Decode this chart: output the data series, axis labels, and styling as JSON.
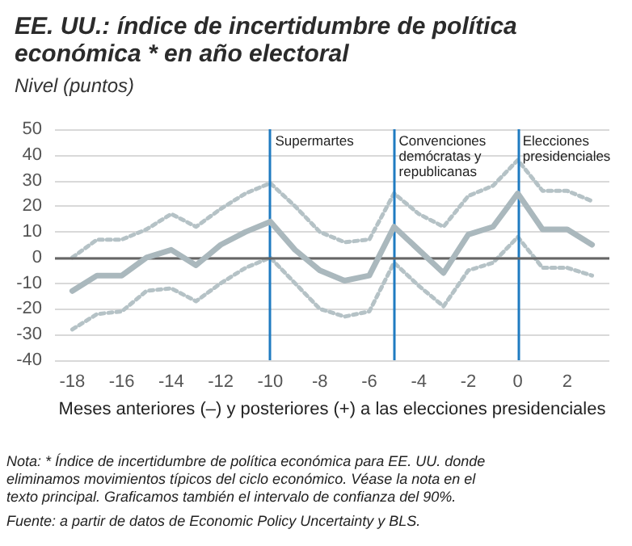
{
  "chart_data": {
    "type": "line",
    "title": "EE. UU.: índice de incertidumbre de política económica * en año electoral",
    "subtitle": "Nivel (puntos)",
    "xlabel": "Meses anteriores (–) y posteriores (+) a las elecciones presidenciales",
    "annotations": [
      "Nota: * Índice de incertidumbre de política económica para EE. UU. donde eliminamos movimientos típicos del ciclo económico. Véase la nota en el texto principal. Graficamos también el intervalo de confianza del 90%.",
      "Fuente: a partir de datos de Economic Policy Uncertainty y BLS."
    ],
    "x": [
      -18,
      -17,
      -16,
      -15,
      -14,
      -13,
      -12,
      -11,
      -10,
      -9,
      -8,
      -7,
      -6,
      -5,
      -4,
      -3,
      -2,
      -1,
      0,
      1,
      2,
      3
    ],
    "series": [
      {
        "color": "#aab8bd",
        "line_style": "solid",
        "values": [
          -13,
          -7,
          -7,
          0,
          3,
          -3,
          5,
          10,
          14,
          3,
          -5,
          -9,
          -7,
          12,
          3,
          -6,
          9,
          12,
          25,
          11,
          11,
          5
        ]
      },
      {
        "color": "#b5c2c6",
        "line_style": "dotted",
        "values": [
          0,
          7,
          7,
          11,
          17,
          12,
          19,
          25,
          29,
          20,
          10,
          6,
          7,
          25,
          17,
          12,
          24,
          28,
          38,
          26,
          26,
          22
        ]
      },
      {
        "color": "#b5c2c6",
        "line_style": "dotted",
        "values": [
          -28,
          -22,
          -21,
          -13,
          -12,
          -17,
          -10,
          -4,
          0,
          -10,
          -20,
          -23,
          -21,
          -2,
          -11,
          -19,
          -5,
          -2,
          8,
          -4,
          -4,
          -7
        ]
      }
    ],
    "xlim": [
      -18.7,
      3.7
    ],
    "xticks": [
      -18,
      -16,
      -14,
      -12,
      -10,
      -8,
      -6,
      -4,
      -2,
      0,
      2
    ],
    "ylim": [
      -40,
      50
    ],
    "yticks": [
      -40,
      -30,
      -20,
      -10,
      0,
      10,
      20,
      30,
      40,
      50
    ],
    "grid": "y",
    "marker": "none",
    "ref_lines": [
      {
        "axis": "x",
        "value": -10,
        "label": "Supermartes",
        "color": "#1f7bc1"
      },
      {
        "axis": "x",
        "value": -5,
        "label": "Convenciones demócratas y republicanas",
        "color": "#1f7bc1"
      },
      {
        "axis": "x",
        "value": 0,
        "label": "Elecciones presidenciales",
        "color": "#1f7bc1"
      }
    ]
  }
}
